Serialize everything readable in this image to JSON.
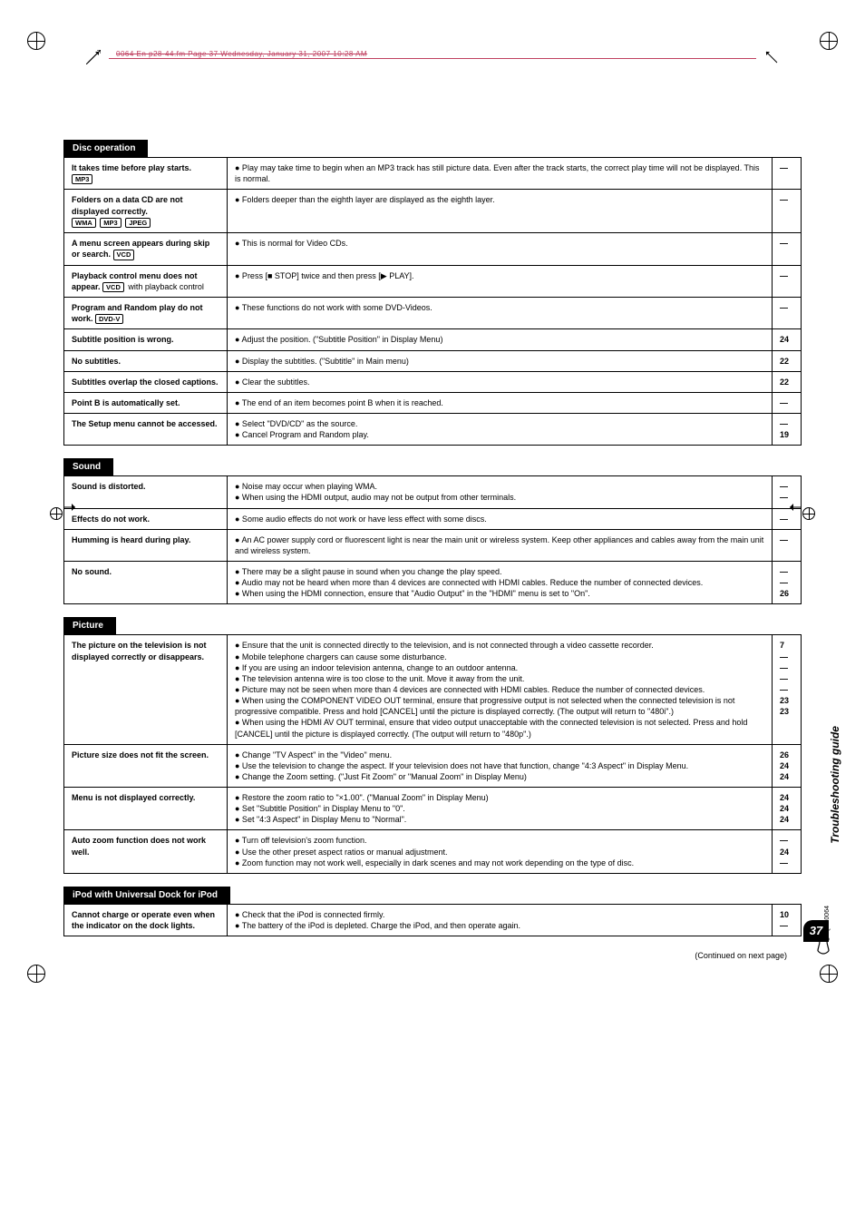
{
  "header_text": "0064 En p28-44.fm  Page 37  Wednesday, January 31, 2007  10:28 AM",
  "side_label": "Troubleshooting guide",
  "continued_text": "(Continued on next page)",
  "footer_code": "RQTX0064",
  "page_number": "37",
  "sections": [
    {
      "title": "Disc operation",
      "rows": [
        {
          "problem_html": "It takes time before play starts.<br><span class='disc-label'>MP3</span>",
          "causes": [
            "● Play may take time to begin when an MP3 track has still picture data. Even after the track starts, the correct play time will not be displayed. This is normal."
          ],
          "refs": [
            "—"
          ]
        },
        {
          "problem_html": "Folders on a data CD are not displayed correctly.<br><span class='disc-label'>WMA</span> <span class='disc-label'>MP3</span> <span class='disc-label'>JPEG</span>",
          "causes": [
            "● Folders deeper than the eighth layer are displayed as the eighth layer."
          ],
          "refs": [
            "—"
          ]
        },
        {
          "problem_html": "A menu screen appears during skip or search. <span class='disc-label'>VCD</span>",
          "causes": [
            "● This is normal for Video CDs."
          ],
          "refs": [
            "—"
          ]
        },
        {
          "problem_html": "Playback control menu does not appear. <span class='disc-label'>VCD</span> <span style='font-weight:normal'>with playback control</span>",
          "causes": [
            "● Press [■ STOP] twice and then press [▶ PLAY]."
          ],
          "refs": [
            "—"
          ]
        },
        {
          "problem_html": "Program and Random play do not work. <span class='disc-label'>DVD-V</span>",
          "causes": [
            "● These functions do not work with some DVD-Videos."
          ],
          "refs": [
            "—"
          ]
        },
        {
          "problem_html": "Subtitle position is wrong.",
          "causes": [
            "● Adjust the position. (\"Subtitle Position\" in Display Menu)"
          ],
          "refs": [
            "24"
          ]
        },
        {
          "problem_html": "No subtitles.",
          "causes": [
            "● Display the subtitles. (\"Subtitle\" in Main menu)"
          ],
          "refs": [
            "22"
          ]
        },
        {
          "problem_html": "Subtitles overlap the closed captions.",
          "causes": [
            "● Clear the subtitles."
          ],
          "refs": [
            "22"
          ]
        },
        {
          "problem_html": "Point B is automatically set.",
          "causes": [
            "● The end of an item becomes point B when it is reached."
          ],
          "refs": [
            "—"
          ]
        },
        {
          "problem_html": "The Setup menu cannot be accessed.",
          "causes": [
            "● Select \"DVD/CD\" as the source.",
            "● Cancel Program and Random play."
          ],
          "refs": [
            "—",
            "19"
          ]
        }
      ]
    },
    {
      "title": "Sound",
      "rows": [
        {
          "problem_html": "Sound is distorted.",
          "causes": [
            "● Noise may occur when playing WMA.",
            "● When using the HDMI output, audio may not be output from other terminals."
          ],
          "refs": [
            "—",
            "—"
          ]
        },
        {
          "problem_html": "Effects do not work.",
          "causes": [
            "● Some audio effects do not work or have less effect with some discs."
          ],
          "refs": [
            "—"
          ]
        },
        {
          "problem_html": "Humming is heard during play.",
          "causes": [
            "● An AC power supply cord or fluorescent light is near the main unit or wireless system. Keep other appliances and cables away from the main unit and wireless system."
          ],
          "refs": [
            "—"
          ]
        },
        {
          "problem_html": "No sound.",
          "causes": [
            "● There may be a slight pause in sound when you change the play speed.",
            "● Audio may not be heard when more than 4 devices are connected with HDMI cables. Reduce the number of connected devices.",
            "● When using the HDMI connection, ensure that \"Audio Output\" in the \"HDMI\" menu is set to \"On\"."
          ],
          "refs": [
            "—",
            "—",
            "26"
          ]
        }
      ]
    },
    {
      "title": "Picture",
      "rows": [
        {
          "problem_html": "The picture on the television is not displayed correctly or disappears.",
          "causes": [
            "● Ensure that the unit is connected directly to the television, and is not connected through a video cassette recorder.",
            "● Mobile telephone chargers can cause some disturbance.",
            "● If you are using an indoor television antenna, change to an outdoor antenna.",
            "● The television antenna wire is too close to the unit. Move it away from the unit.",
            "● Picture may not be seen when more than 4 devices are connected with HDMI cables. Reduce the number of connected devices.",
            "● When using the COMPONENT VIDEO OUT terminal, ensure that progressive output is not selected when the connected television is not progressive compatible. Press and hold [CANCEL] until the picture is displayed correctly. (The output will return to \"480i\".)",
            "● When using the HDMI AV OUT terminal, ensure that video output unacceptable with the connected television is not selected. Press and hold [CANCEL] until the picture is displayed correctly. (The output will return to \"480p\".)"
          ],
          "refs": [
            "7",
            "—",
            "—",
            "—",
            "—",
            "23",
            "23"
          ]
        },
        {
          "problem_html": "Picture size does not fit the screen.",
          "causes": [
            "● Change \"TV Aspect\" in the \"Video\" menu.",
            "● Use the television to change the aspect. If your television does not have that function, change \"4:3 Aspect\" in Display Menu.",
            "● Change the Zoom setting. (\"Just Fit Zoom\" or \"Manual Zoom\" in Display Menu)"
          ],
          "refs": [
            "26",
            "24",
            "24"
          ]
        },
        {
          "problem_html": "Menu is not displayed correctly.",
          "causes": [
            "● Restore the zoom ratio to \"×1.00\". (\"Manual Zoom\" in Display Menu)",
            "● Set \"Subtitle Position\" in Display Menu to \"0\".",
            "● Set \"4:3 Aspect\" in Display Menu to \"Normal\"."
          ],
          "refs": [
            "24",
            "24",
            "24"
          ]
        },
        {
          "problem_html": "Auto zoom function does not work well.",
          "causes": [
            "● Turn off television's zoom function.",
            "● Use the other preset aspect ratios or manual adjustment.",
            "● Zoom function may not work well, especially in dark scenes and may not work depending on the type of disc."
          ],
          "refs": [
            "—",
            "24",
            "—"
          ]
        }
      ]
    },
    {
      "title": "iPod with Universal Dock for iPod",
      "rows": [
        {
          "problem_html": "Cannot charge or operate even when the indicator on the dock lights.",
          "causes": [
            "● Check that the iPod is connected firmly.",
            "● The battery of the iPod is depleted. Charge the iPod, and then operate again."
          ],
          "refs": [
            "10",
            "—"
          ]
        }
      ]
    }
  ]
}
